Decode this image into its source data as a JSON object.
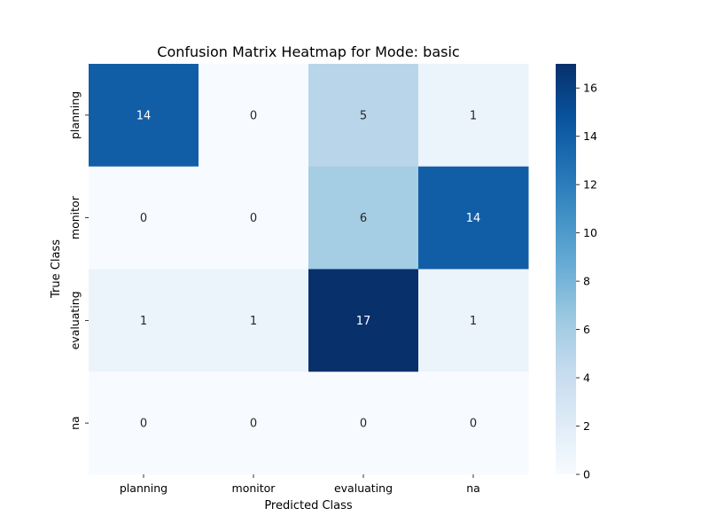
{
  "chart_data": {
    "type": "heatmap",
    "title": "Confusion Matrix Heatmap for Mode: basic",
    "xlabel": "Predicted Class",
    "ylabel": "True Class",
    "x_categories": [
      "planning",
      "monitor",
      "evaluating",
      "na"
    ],
    "y_categories": [
      "planning",
      "monitor",
      "evaluating",
      "na"
    ],
    "values": [
      [
        14,
        0,
        5,
        1
      ],
      [
        0,
        0,
        6,
        14
      ],
      [
        1,
        1,
        17,
        1
      ],
      [
        0,
        0,
        0,
        0
      ]
    ],
    "colorbar": {
      "range": [
        0,
        17
      ],
      "ticks": [
        0,
        2,
        4,
        6,
        8,
        10,
        12,
        14,
        16
      ],
      "colormap": "Blues"
    }
  }
}
